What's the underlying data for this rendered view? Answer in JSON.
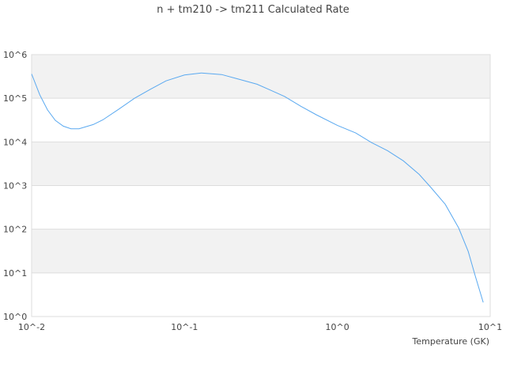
{
  "chart_data": {
    "type": "line",
    "title": "n + tm210 -> tm211 Calculated Rate",
    "xlabel": "Temperature (GK)",
    "ylabel": "",
    "xscale": "log",
    "yscale": "log",
    "xlim": [
      0.01,
      10
    ],
    "ylim": [
      1,
      1000000
    ],
    "x_ticks": [
      "10^-2",
      "10^-1",
      "10^0",
      "10^1"
    ],
    "y_ticks": [
      "10^0",
      "10^1",
      "10^2",
      "10^3",
      "10^4",
      "10^5",
      "10^6"
    ],
    "grid": "horizontal alternating bands",
    "legend": "none",
    "colors": {
      "line": "#5aa9f0",
      "band": "#f2f2f2",
      "grid": "#dddddd"
    },
    "series": [
      {
        "x": [
          0.01,
          0.0113,
          0.0127,
          0.0143,
          0.0161,
          0.0181,
          0.0204,
          0.0253,
          0.0292,
          0.0371,
          0.0471,
          0.0597,
          0.0757,
          0.1,
          0.129,
          0.175,
          0.221,
          0.298,
          0.356,
          0.452,
          0.574,
          0.728,
          1.0,
          1.32,
          1.67,
          2.13,
          2.7,
          3.43,
          4.1,
          5.08,
          6.22,
          7.18,
          7.99,
          9.0
        ],
        "y": [
          360000,
          120000,
          54000,
          31000,
          23000,
          20000,
          20000,
          25000,
          32000,
          56000,
          100000,
          160000,
          250000,
          340000,
          380000,
          350000,
          280000,
          210000,
          160000,
          110000,
          66000,
          42000,
          24000,
          16000,
          9700,
          6300,
          3700,
          1800,
          900,
          373,
          107,
          31,
          8.4,
          2.1
        ]
      }
    ]
  }
}
